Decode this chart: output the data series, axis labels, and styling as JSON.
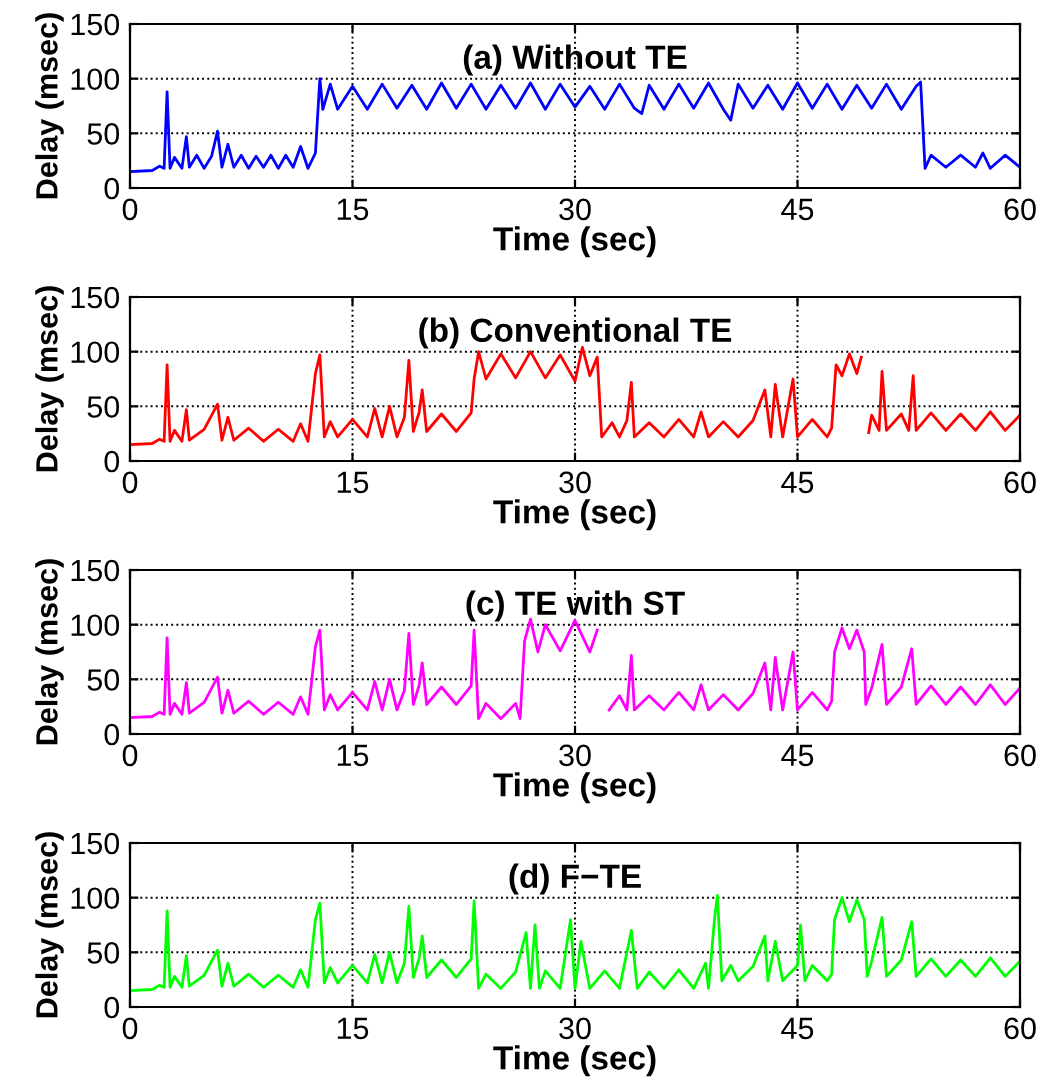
{
  "chart_data": [
    {
      "type": "line",
      "title": "(a) Without TE",
      "xlabel": "Time (sec)",
      "ylabel": "Delay (msec)",
      "xlim": [
        0,
        60
      ],
      "ylim": [
        0,
        150
      ],
      "xticks": [
        0,
        15,
        30,
        45,
        60
      ],
      "yticks": [
        0,
        50,
        100,
        150
      ],
      "grid": true,
      "line_style": "solid",
      "marker": "none",
      "series": [
        {
          "color": "#0000ff",
          "x": [
            0,
            1.5,
            2,
            2.3,
            2.5,
            2.7,
            3,
            3.5,
            3.8,
            4,
            4.5,
            5,
            5.5,
            5.9,
            6.2,
            6.6,
            7,
            7.5,
            8,
            8.5,
            9,
            9.5,
            10,
            10.5,
            11,
            11.5,
            12,
            12.5,
            12.8,
            13,
            13.5,
            14,
            15,
            16,
            17,
            18,
            19,
            20,
            21,
            22,
            23,
            24,
            25,
            26,
            27,
            28,
            29,
            30,
            31,
            32,
            33,
            34,
            34.5,
            35,
            36,
            37,
            38,
            39,
            40,
            40.5,
            41,
            42,
            43,
            44,
            45,
            46,
            47,
            48,
            49,
            50,
            51,
            52,
            53,
            53.3,
            53.6,
            54,
            55,
            56,
            57,
            57.5,
            58,
            59,
            60
          ],
          "values": [
            15,
            16,
            20,
            18,
            88,
            18,
            28,
            18,
            47,
            19,
            30,
            18,
            29,
            52,
            19,
            40,
            19,
            30,
            18,
            29,
            19,
            30,
            18,
            30,
            19,
            38,
            18,
            32,
            100,
            72,
            95,
            72,
            93,
            72,
            95,
            73,
            94,
            72,
            96,
            73,
            95,
            72,
            94,
            73,
            96,
            72,
            95,
            74,
            93,
            72,
            95,
            73,
            68,
            94,
            72,
            95,
            73,
            96,
            72,
            62,
            95,
            73,
            94,
            72,
            96,
            73,
            95,
            72,
            94,
            73,
            95,
            72,
            93,
            97,
            18,
            30,
            19,
            30,
            19,
            32,
            18,
            30,
            19
          ]
        }
      ]
    },
    {
      "type": "line",
      "title": "(b) Conventional TE",
      "xlabel": "Time (sec)",
      "ylabel": "Delay (msec)",
      "xlim": [
        0,
        60
      ],
      "ylim": [
        0,
        150
      ],
      "xticks": [
        0,
        15,
        30,
        45,
        60
      ],
      "yticks": [
        0,
        50,
        100,
        150
      ],
      "grid": true,
      "line_style": "solid",
      "marker": "none",
      "series": [
        {
          "color": "#ff0000",
          "x": [
            0,
            1.5,
            2,
            2.3,
            2.5,
            2.7,
            3,
            3.5,
            3.8,
            4,
            5,
            5.9,
            6.2,
            6.6,
            7,
            8,
            9,
            10,
            11,
            11.5,
            12,
            12.5,
            12.8,
            13.1,
            13.5,
            14,
            15,
            16,
            16.5,
            17,
            17.5,
            18,
            18.5,
            18.8,
            19.1,
            19.5,
            19.7,
            20,
            21,
            22,
            23,
            23.2,
            23.5,
            24,
            25,
            26,
            27,
            28,
            29,
            30,
            30.5,
            31,
            31.5,
            31.8,
            32.5,
            33,
            33.5,
            33.8,
            34,
            35,
            36,
            37,
            38,
            38.5,
            39,
            40,
            41,
            42,
            42.8,
            43.2,
            43.5,
            44,
            44.7,
            45,
            46,
            47,
            47.3,
            47.6,
            48,
            48.5,
            49,
            49.3,
            49.5,
            49.8,
            50,
            50.5,
            50.7,
            51,
            52,
            52.5,
            52.8,
            53,
            54,
            55,
            56,
            57,
            58,
            59,
            60
          ],
          "values": [
            15,
            16,
            20,
            18,
            88,
            18,
            28,
            18,
            47,
            19,
            29,
            52,
            19,
            40,
            19,
            30,
            18,
            29,
            18,
            34,
            18,
            80,
            97,
            22,
            36,
            22,
            38,
            22,
            48,
            22,
            50,
            22,
            40,
            92,
            27,
            45,
            65,
            27,
            43,
            27,
            44,
            75,
            100,
            75,
            98,
            76,
            100,
            76,
            97,
            73,
            104,
            78,
            95,
            22,
            35,
            22,
            37,
            72,
            22,
            35,
            22,
            38,
            22,
            45,
            22,
            36,
            22,
            37,
            65,
            22,
            70,
            22,
            75,
            22,
            38,
            22,
            30,
            88,
            78,
            98,
            80,
            95,
            null,
            26,
            42,
            28,
            82,
            28,
            43,
            28,
            78,
            28,
            44,
            28,
            43,
            28,
            45,
            28,
            42
          ]
        }
      ]
    },
    {
      "type": "line",
      "title": "(c) TE with ST",
      "xlabel": "Time (sec)",
      "ylabel": "Delay (msec)",
      "xlim": [
        0,
        60
      ],
      "ylim": [
        0,
        150
      ],
      "xticks": [
        0,
        15,
        30,
        45,
        60
      ],
      "yticks": [
        0,
        50,
        100,
        150
      ],
      "grid": true,
      "line_style": "solid",
      "marker": "none",
      "series": [
        {
          "color": "#ff00ff",
          "x": [
            0,
            1.5,
            2,
            2.3,
            2.5,
            2.7,
            3,
            3.5,
            3.8,
            4,
            5,
            5.9,
            6.2,
            6.6,
            7,
            8,
            9,
            10,
            11,
            11.5,
            12,
            12.5,
            12.8,
            13.1,
            13.5,
            14,
            15,
            16,
            16.5,
            17,
            17.5,
            18,
            18.5,
            18.8,
            19.1,
            19.5,
            19.7,
            20,
            21,
            22,
            23,
            23.2,
            23.5,
            24,
            25,
            26,
            26.3,
            26.6,
            27,
            27.5,
            28,
            29,
            30,
            31,
            31.5,
            32,
            32.3,
            33,
            33.5,
            33.8,
            34,
            35,
            36,
            37,
            38,
            38.5,
            39,
            40,
            41,
            42,
            42.8,
            43.2,
            43.5,
            44,
            44.7,
            45,
            46,
            47,
            47.3,
            47.5,
            48,
            48.5,
            49,
            49.5,
            49.6,
            50,
            50.7,
            51,
            52,
            52.7,
            53,
            54,
            55,
            56,
            57,
            58,
            59,
            60
          ],
          "values": [
            15,
            16,
            20,
            18,
            88,
            18,
            28,
            18,
            47,
            19,
            29,
            52,
            19,
            40,
            19,
            30,
            18,
            29,
            18,
            34,
            18,
            80,
            95,
            22,
            36,
            22,
            38,
            22,
            48,
            22,
            50,
            22,
            40,
            92,
            27,
            45,
            65,
            27,
            43,
            27,
            44,
            95,
            14,
            28,
            14,
            28,
            14,
            85,
            105,
            75,
            100,
            76,
            104,
            75,
            95,
            null,
            22,
            35,
            22,
            72,
            22,
            35,
            22,
            38,
            22,
            45,
            22,
            36,
            22,
            37,
            65,
            22,
            70,
            22,
            75,
            22,
            38,
            22,
            30,
            75,
            97,
            78,
            95,
            75,
            27,
            42,
            82,
            27,
            43,
            78,
            27,
            44,
            27,
            43,
            27,
            45,
            27,
            42
          ]
        }
      ]
    },
    {
      "type": "line",
      "title": "(d) F−TE",
      "xlabel": "Time (sec)",
      "ylabel": "Delay (msec)",
      "xlim": [
        0,
        60
      ],
      "ylim": [
        0,
        150
      ],
      "xticks": [
        0,
        15,
        30,
        45,
        60
      ],
      "yticks": [
        0,
        50,
        100,
        150
      ],
      "grid": true,
      "line_style": "solid",
      "marker": "none",
      "series": [
        {
          "color": "#00ff00",
          "x": [
            0,
            1.5,
            2,
            2.3,
            2.5,
            2.7,
            3,
            3.5,
            3.8,
            4,
            5,
            5.9,
            6.2,
            6.6,
            7,
            8,
            9,
            10,
            11,
            11.5,
            12,
            12.5,
            12.8,
            13.1,
            13.5,
            14,
            15,
            16,
            16.5,
            17,
            17.5,
            18,
            18.5,
            18.8,
            19.1,
            19.5,
            19.7,
            20,
            21,
            22,
            23,
            23.2,
            23.5,
            24,
            25,
            26,
            26.7,
            27,
            27.3,
            27.6,
            28,
            29,
            29.7,
            30,
            30.4,
            31,
            32,
            33,
            33.8,
            34.2,
            35,
            36,
            37,
            38,
            38.8,
            39,
            39.4,
            39.6,
            39.9,
            40.5,
            41,
            42,
            42.8,
            43,
            43.5,
            44,
            45,
            45.2,
            45.5,
            46,
            47,
            47.3,
            47.5,
            48,
            48.5,
            49,
            49.5,
            49.7,
            50,
            50.7,
            51,
            52,
            52.7,
            53,
            54,
            55,
            56,
            57,
            58,
            59,
            60
          ],
          "values": [
            15,
            16,
            20,
            18,
            88,
            18,
            28,
            18,
            47,
            19,
            29,
            52,
            19,
            40,
            19,
            30,
            18,
            29,
            18,
            34,
            18,
            80,
            95,
            22,
            36,
            22,
            38,
            22,
            48,
            22,
            50,
            22,
            40,
            92,
            27,
            45,
            65,
            27,
            43,
            27,
            44,
            97,
            17,
            30,
            17,
            32,
            68,
            17,
            75,
            17,
            33,
            17,
            80,
            17,
            60,
            17,
            33,
            17,
            70,
            17,
            32,
            17,
            34,
            17,
            40,
            17,
            80,
            102,
            24,
            38,
            24,
            37,
            65,
            24,
            60,
            24,
            38,
            75,
            24,
            38,
            24,
            30,
            80,
            100,
            78,
            98,
            80,
            28,
            42,
            82,
            28,
            43,
            78,
            28,
            44,
            28,
            43,
            28,
            45,
            28,
            42
          ]
        }
      ]
    }
  ]
}
